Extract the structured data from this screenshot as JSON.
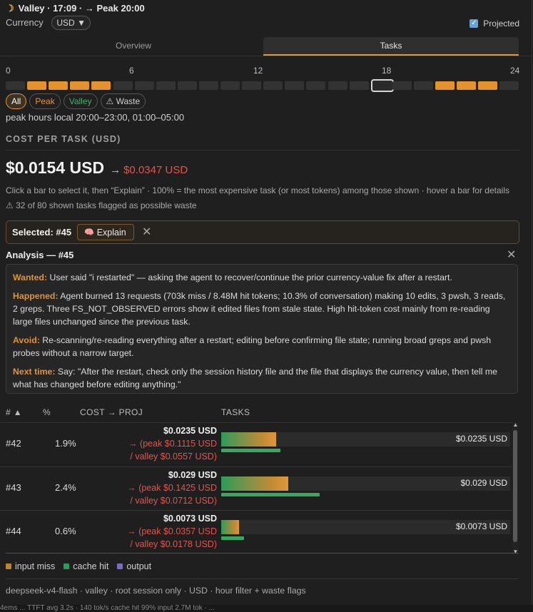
{
  "header": {
    "text": "Valley · 17:09 · → Peak 20:00"
  },
  "currency": {
    "label": "Currency",
    "value": "USD",
    "caret": "▼"
  },
  "projected": {
    "label": "Projected",
    "checked": true
  },
  "tabs": [
    {
      "label": "Overview",
      "active": false
    },
    {
      "label": "Tasks",
      "active": true
    }
  ],
  "hour_axis": [
    "0",
    "6",
    "12",
    "18",
    "24"
  ],
  "hours": [
    {
      "h": 0,
      "peak": false
    },
    {
      "h": 1,
      "peak": true
    },
    {
      "h": 2,
      "peak": true
    },
    {
      "h": 3,
      "peak": true
    },
    {
      "h": 4,
      "peak": true
    },
    {
      "h": 5,
      "peak": false
    },
    {
      "h": 6,
      "peak": false
    },
    {
      "h": 7,
      "peak": false
    },
    {
      "h": 8,
      "peak": false
    },
    {
      "h": 9,
      "peak": false
    },
    {
      "h": 10,
      "peak": false
    },
    {
      "h": 11,
      "peak": false
    },
    {
      "h": 12,
      "peak": false
    },
    {
      "h": 13,
      "peak": false
    },
    {
      "h": 14,
      "peak": false
    },
    {
      "h": 15,
      "peak": false
    },
    {
      "h": 16,
      "peak": false
    },
    {
      "h": 17,
      "peak": false,
      "current": true
    },
    {
      "h": 18,
      "peak": false
    },
    {
      "h": 19,
      "peak": false
    },
    {
      "h": 20,
      "peak": true
    },
    {
      "h": 21,
      "peak": true
    },
    {
      "h": 22,
      "peak": true
    },
    {
      "h": 23,
      "peak": false
    }
  ],
  "filters": {
    "all": "All",
    "peak": "Peak",
    "valley": "Valley",
    "waste": "⚠ Waste"
  },
  "peak_hours": "peak hours local 20:00–23:00, 01:00–05:00",
  "section_title": "COST PER TASK (USD)",
  "cost": {
    "value": "$0.0154 USD",
    "arrow": "→",
    "projected": "$0.0347 USD"
  },
  "hint": "Click a bar to select it, then “Explain” · 100% = the most expensive task (or most tokens) among those shown · hover a bar for details",
  "waste_note": "⚠ 32 of 80 shown tasks flagged as possible waste",
  "selected": {
    "label": "Selected: #45",
    "explain": "Explain",
    "brain": "🧠",
    "close": "✕"
  },
  "analysis": {
    "title": "Analysis — #45",
    "close": "✕",
    "wanted_k": "Wanted:",
    "wanted": " User said \"i restarted\" — asking the agent to recover/continue the prior currency-value fix after a restart.",
    "happened_k": "Happened:",
    "happened": " Agent burned 13 requests (703k miss / 8.48M hit tokens; 10.3% of conversation) making 10 edits, 3 pwsh, 3 reads, 2 greps. Three FS_NOT_OBSERVED errors show it edited files from stale state. High hit-token cost mainly from re-reading large files unchanged since the previous task.",
    "avoid_k": "Avoid:",
    "avoid": " Re-scanning/re-reading everything after a restart; editing before confirming file state; running broad greps and pwsh probes without a narrow target.",
    "next_k": "Next time:",
    "next": " Say: \"After the restart, check only the session history file and the file that displays the currency value, then tell me what has changed before editing anything.\""
  },
  "table": {
    "headers": {
      "id": "# ▲",
      "pct": "%",
      "cost": "COST → PROJ",
      "tasks": "TASKS"
    },
    "rows": [
      {
        "id": "#42",
        "pct": "1.9%",
        "cost": "$0.0235 USD",
        "peak": "→ (peak $0.1115 USD",
        "valley": "/ valley $0.0557 USD)",
        "bar_label": "$0.0235 USD",
        "fill": 0.19,
        "cache": 0.205
      },
      {
        "id": "#43",
        "pct": "2.4%",
        "cost": "$0.029 USD",
        "peak": "→ (peak $0.1425 USD",
        "valley": "/ valley $0.0712 USD)",
        "bar_label": "$0.029 USD",
        "fill": 0.232,
        "cache": 0.34
      },
      {
        "id": "#44",
        "pct": "0.6%",
        "cost": "$0.0073 USD",
        "peak": "→ (peak $0.0357 USD",
        "valley": "/ valley $0.0178 USD)",
        "bar_label": "$0.0073 USD",
        "fill": 0.062,
        "cache": 0.08
      }
    ]
  },
  "legend": [
    {
      "label": "input miss",
      "color": "#c2812e"
    },
    {
      "label": "cache hit",
      "color": "#2f9b5a"
    },
    {
      "label": "output",
      "color": "#7a6bc4"
    }
  ],
  "footer": "deepseek-v4-flash · valley · root session only · USD · hour filter + waste flags",
  "statusbar": "4ems ... TTFT avg 3.2s · 140 tok/s     cache hit 99%     input 2.7M tok · ..."
}
